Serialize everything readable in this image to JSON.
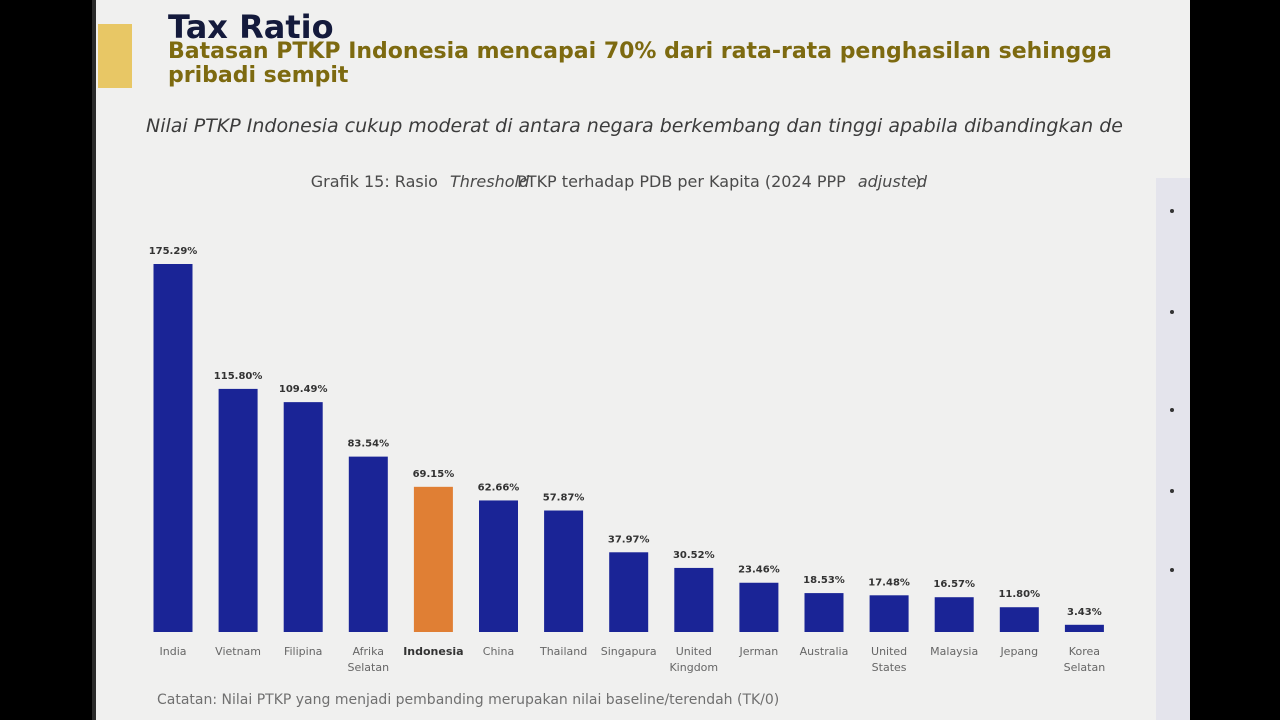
{
  "header": {
    "title": "Tax Ratio",
    "subtitle_line1": "Batasan PTKP Indonesia mencapai 70% dari rata-rata penghasilan sehingga",
    "subtitle_line2": "pribadi sempit",
    "description": "Nilai PTKP Indonesia cukup moderat di antara negara berkembang dan tinggi apabila dibandingkan de"
  },
  "chart_title": {
    "prefix": "Grafik 15: Rasio ",
    "italic1": "Threshold",
    "middle": " PTKP terhadap PDB per Kapita (2024 PPP ",
    "italic2": "adjusted",
    "suffix": ")"
  },
  "note": "Catatan: Nilai PTKP yang menjadi pembanding merupakan nilai baseline/terendah (TK/0)",
  "colors": {
    "accent": "#e8c765",
    "subtitle": "#7d6a10",
    "bar": "#1a2496",
    "highlight_bar": "#e07f34"
  },
  "chart_data": {
    "type": "bar",
    "title": "Grafik 15: Rasio Threshold PTKP terhadap PDB per Kapita (2024 PPP adjusted)",
    "categories": [
      [
        "India"
      ],
      [
        "Vietnam"
      ],
      [
        "Filipina"
      ],
      [
        "Afrika",
        "Selatan"
      ],
      [
        "Indonesia"
      ],
      [
        "China"
      ],
      [
        "Thailand"
      ],
      [
        "Singapura"
      ],
      [
        "United",
        "Kingdom"
      ],
      [
        "Jerman"
      ],
      [
        "Australia"
      ],
      [
        "United",
        "States"
      ],
      [
        "Malaysia"
      ],
      [
        "Jepang"
      ],
      [
        "Korea",
        "Selatan"
      ]
    ],
    "values": [
      175.29,
      115.8,
      109.49,
      83.54,
      69.15,
      62.66,
      57.87,
      37.97,
      30.52,
      23.46,
      18.53,
      17.48,
      16.57,
      11.8,
      3.43
    ],
    "data_labels": [
      "175.29%",
      "115.80%",
      "109.49%",
      "83.54%",
      "69.15%",
      "62.66%",
      "57.87%",
      "37.97%",
      "30.52%",
      "23.46%",
      "18.53%",
      "17.48%",
      "16.57%",
      "11.80%",
      "3.43%"
    ],
    "highlight": "Indonesia",
    "ylim": [
      0,
      175.29
    ],
    "grid": false,
    "legend": "none"
  }
}
